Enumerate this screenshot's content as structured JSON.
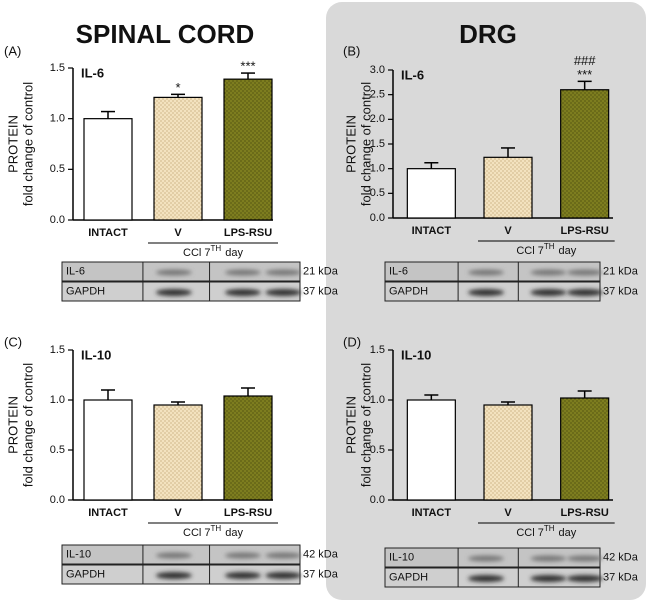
{
  "headings": [
    "SPINAL CORD",
    "DRG"
  ],
  "chart_data": [
    {
      "type": "bar",
      "panel": "(A)",
      "title": "IL-6",
      "ylabel": [
        "PROTEIN",
        "fold change of control"
      ],
      "categories": [
        "INTACT",
        "V",
        "LPS-RSU"
      ],
      "values": [
        1.0,
        1.21,
        1.39
      ],
      "errors": [
        0.07,
        0.03,
        0.06
      ],
      "annotations": [
        null,
        "*",
        "***"
      ],
      "annotations_top": [
        null,
        null,
        null
      ],
      "colors": [
        "#ffffff",
        "#f3e2bf",
        "#7d7d1f"
      ],
      "ylim": [
        0,
        1.5
      ],
      "yticks": [
        {
          "value": 0,
          "label": "0.0"
        },
        {
          "value": 0.5,
          "label": "0.5"
        },
        {
          "value": 1,
          "label": "1.0"
        },
        {
          "value": 1.5,
          "label": "1.5"
        }
      ],
      "group_label": {
        "text": "CCl 7",
        "sup": "TH",
        "after": "day"
      },
      "blot": [
        {
          "label": "IL-6",
          "kda": "21 kDa"
        },
        {
          "label": "GAPDH",
          "kda": "37 kDa"
        }
      ]
    },
    {
      "type": "bar",
      "panel": "(B)",
      "title": "IL-6",
      "ylabel": [
        "PROTEIN",
        "fold change of control"
      ],
      "categories": [
        "INTACT",
        "V",
        "LPS-RSU"
      ],
      "values": [
        1.0,
        1.23,
        2.6
      ],
      "errors": [
        0.12,
        0.19,
        0.17
      ],
      "annotations": [
        null,
        null,
        "***"
      ],
      "annotations_top": [
        null,
        null,
        "###"
      ],
      "colors": [
        "#ffffff",
        "#f3e2bf",
        "#7d7d1f"
      ],
      "ylim": [
        0,
        3
      ],
      "yticks": [
        {
          "value": 0,
          "label": "0.0"
        },
        {
          "value": 0.5,
          "label": "0.5"
        },
        {
          "value": 1,
          "label": "1.0"
        },
        {
          "value": 1.5,
          "label": "1.5"
        },
        {
          "value": 2,
          "label": "2.0"
        },
        {
          "value": 2.5,
          "label": "2.5"
        },
        {
          "value": 3,
          "label": "3.0"
        }
      ],
      "group_label": {
        "text": "CCl 7",
        "sup": "TH",
        "after": "day"
      },
      "blot": [
        {
          "label": "IL-6",
          "kda": "21 kDa"
        },
        {
          "label": "GAPDH",
          "kda": "37 kDa"
        }
      ]
    },
    {
      "type": "bar",
      "panel": "(C)",
      "title": "IL-10",
      "ylabel": [
        "PROTEIN",
        "fold change of control"
      ],
      "categories": [
        "INTACT",
        "V",
        "LPS-RSU"
      ],
      "values": [
        1.0,
        0.95,
        1.04
      ],
      "errors": [
        0.1,
        0.03,
        0.08
      ],
      "annotations": [
        null,
        null,
        null
      ],
      "annotations_top": [
        null,
        null,
        null
      ],
      "colors": [
        "#ffffff",
        "#f3e2bf",
        "#7d7d1f"
      ],
      "ylim": [
        0,
        1.5
      ],
      "yticks": [
        {
          "value": 0,
          "label": "0.0"
        },
        {
          "value": 0.5,
          "label": "0.5"
        },
        {
          "value": 1,
          "label": "1.0"
        },
        {
          "value": 1.5,
          "label": "1.5"
        }
      ],
      "group_label": {
        "text": "CCl 7",
        "sup": "TH",
        "after": "day"
      },
      "blot": [
        {
          "label": "IL-10",
          "kda": "42 kDa"
        },
        {
          "label": "GAPDH",
          "kda": "37 kDa"
        }
      ]
    },
    {
      "type": "bar",
      "panel": "(D)",
      "title": "IL-10",
      "ylabel": [
        "PROTEIN",
        "fold change of control"
      ],
      "categories": [
        "INTACT",
        "V",
        "LPS-RSU"
      ],
      "values": [
        1.0,
        0.95,
        1.02
      ],
      "errors": [
        0.05,
        0.03,
        0.07
      ],
      "annotations": [
        null,
        null,
        null
      ],
      "annotations_top": [
        null,
        null,
        null
      ],
      "colors": [
        "#ffffff",
        "#f3e2bf",
        "#7d7d1f"
      ],
      "ylim": [
        0,
        1.5
      ],
      "yticks": [
        {
          "value": 0,
          "label": "0.0"
        },
        {
          "value": 0.5,
          "label": "0.5"
        },
        {
          "value": 1,
          "label": "1.0"
        },
        {
          "value": 1.5,
          "label": "1.5"
        }
      ],
      "group_label": {
        "text": "CCl 7",
        "sup": "TH",
        "after": "day"
      },
      "blot": [
        {
          "label": "IL-10",
          "kda": "42 kDa"
        },
        {
          "label": "GAPDH",
          "kda": "37 kDa"
        }
      ]
    }
  ]
}
